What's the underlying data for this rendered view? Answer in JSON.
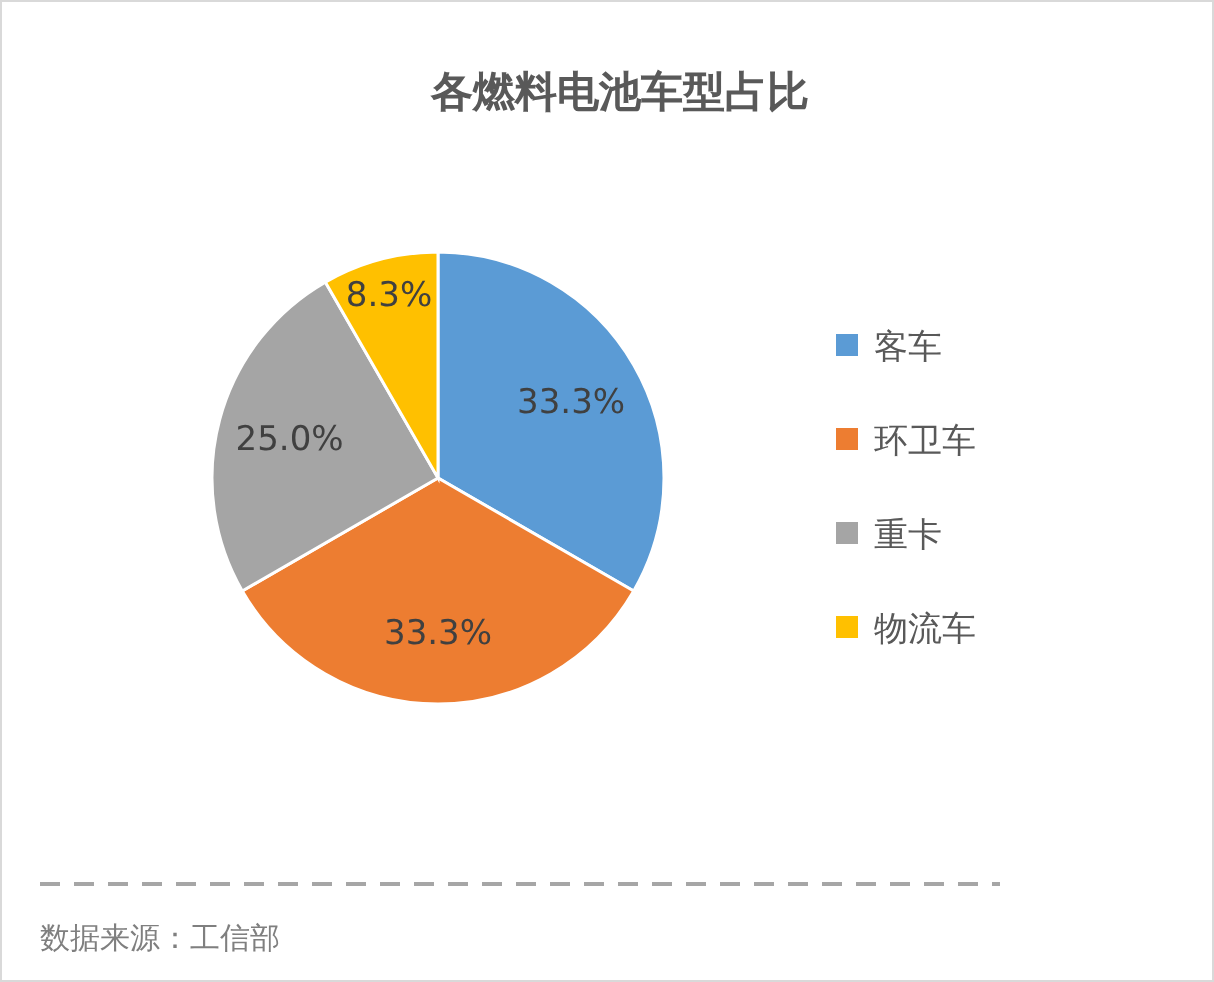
{
  "chart_data": {
    "type": "pie",
    "title": "各燃料电池车型占比",
    "categories": [
      "客车",
      "环卫车",
      "重卡",
      "物流车"
    ],
    "values": [
      33.3,
      33.3,
      25.0,
      8.3
    ],
    "colors": [
      "#5b9bd5",
      "#ed7d31",
      "#a5a5a5",
      "#ffc000"
    ],
    "value_labels": [
      "33.3%",
      "33.3%",
      "25.0%",
      "8.3%"
    ],
    "legend": "right",
    "annotations": [
      "数据来源：工信部"
    ]
  }
}
